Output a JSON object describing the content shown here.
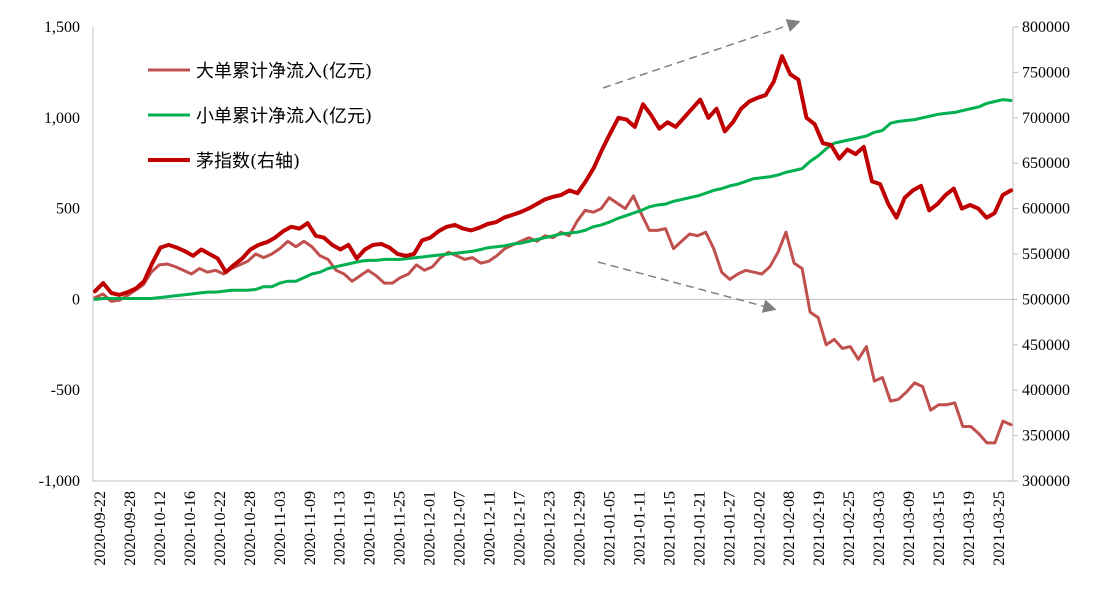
{
  "chart_data": {
    "type": "line",
    "title": "",
    "xlabel": "",
    "ylabel": "",
    "y_left": {
      "ticks": [
        "1,500",
        "1,000",
        "500",
        "0",
        "-500",
        "-1,000"
      ],
      "ylim": [
        -1000,
        1500
      ]
    },
    "y_right": {
      "ticks": [
        "800000",
        "750000",
        "700000",
        "650000",
        "600000",
        "550000",
        "500000",
        "450000",
        "400000",
        "350000",
        "300000"
      ],
      "ylim": [
        300000,
        800000
      ]
    },
    "x_tick_labels": [
      "2020-09-22",
      "2020-09-28",
      "2020-10-12",
      "2020-10-16",
      "2020-10-22",
      "2020-10-28",
      "2020-11-03",
      "2020-11-09",
      "2020-11-13",
      "2020-11-19",
      "2020-11-25",
      "2020-12-01",
      "2020-12-07",
      "2020-12-11",
      "2020-12-17",
      "2020-12-23",
      "2020-12-29",
      "2021-01-05",
      "2021-01-11",
      "2021-01-15",
      "2021-01-21",
      "2021-01-27",
      "2021-02-02",
      "2021-02-08",
      "2021-02-19",
      "2021-02-25",
      "2021-03-03",
      "2021-03-09",
      "2021-03-15",
      "2021-03-19",
      "2021-03-25"
    ],
    "grid": false,
    "legend_position": "top-left",
    "series": [
      {
        "name": "大单累计净流入(亿元)",
        "axis": "left",
        "color": "#c0504d",
        "values": [
          10,
          30,
          -10,
          -5,
          20,
          50,
          80,
          150,
          190,
          195,
          180,
          160,
          140,
          170,
          150,
          160,
          140,
          170,
          190,
          210,
          250,
          230,
          250,
          280,
          320,
          290,
          320,
          290,
          240,
          220,
          160,
          140,
          100,
          130,
          160,
          130,
          90,
          90,
          120,
          140,
          190,
          160,
          180,
          230,
          260,
          240,
          220,
          230,
          200,
          210,
          240,
          280,
          300,
          320,
          340,
          320,
          350,
          340,
          370,
          350,
          430,
          490,
          480,
          500,
          560,
          530,
          500,
          570,
          470,
          380,
          380,
          390,
          280,
          320,
          360,
          350,
          370,
          280,
          150,
          110,
          140,
          160,
          150,
          140,
          180,
          260,
          370,
          200,
          170,
          -70,
          -100,
          -250,
          -220,
          -270,
          -260,
          -330,
          -260,
          -450,
          -430,
          -560,
          -550,
          -510,
          -460,
          -480,
          -610,
          -580,
          -580,
          -570,
          -700,
          -700,
          -740,
          -790,
          -790,
          -670,
          -690
        ]
      },
      {
        "name": "小单累计净流入(亿元)",
        "axis": "left",
        "color": "#00b050",
        "values": [
          0,
          5,
          5,
          5,
          5,
          5,
          5,
          5,
          10,
          15,
          20,
          25,
          30,
          35,
          40,
          40,
          45,
          50,
          50,
          50,
          55,
          70,
          70,
          90,
          100,
          100,
          120,
          140,
          150,
          170,
          180,
          190,
          200,
          210,
          215,
          215,
          220,
          220,
          220,
          225,
          230,
          235,
          240,
          245,
          250,
          255,
          260,
          265,
          275,
          285,
          290,
          295,
          305,
          310,
          320,
          330,
          340,
          350,
          360,
          365,
          370,
          380,
          400,
          410,
          425,
          445,
          460,
          475,
          490,
          510,
          520,
          525,
          540,
          550,
          560,
          570,
          585,
          600,
          610,
          625,
          635,
          650,
          665,
          670,
          675,
          685,
          700,
          710,
          720,
          760,
          790,
          830,
          860,
          870,
          880,
          890,
          900,
          920,
          930,
          970,
          980,
          985,
          990,
          1000,
          1010,
          1020,
          1025,
          1030,
          1040,
          1050,
          1060,
          1080,
          1090,
          1100,
          1095
        ]
      },
      {
        "name": "茅指数(右轴)",
        "axis": "right",
        "color": "#c00000",
        "values": [
          509000,
          518000,
          507000,
          505000,
          508000,
          512000,
          520000,
          540000,
          557000,
          560000,
          557000,
          553000,
          548000,
          555000,
          550000,
          545000,
          530000,
          538000,
          545000,
          555000,
          560000,
          563000,
          568000,
          575000,
          580000,
          578000,
          584000,
          570000,
          568000,
          560000,
          555000,
          560000,
          545000,
          555000,
          560000,
          561000,
          557000,
          550000,
          548000,
          550000,
          565000,
          568000,
          575000,
          580000,
          582000,
          578000,
          576000,
          579000,
          583000,
          585000,
          590000,
          593000,
          596000,
          600000,
          605000,
          610000,
          613000,
          615000,
          620000,
          617000,
          630000,
          645000,
          665000,
          683000,
          700000,
          698000,
          690000,
          715000,
          703000,
          688000,
          695000,
          690000,
          700000,
          710000,
          720000,
          700000,
          710000,
          685000,
          695000,
          710000,
          718000,
          722000,
          725000,
          740000,
          768000,
          748000,
          742000,
          700000,
          693000,
          672000,
          670000,
          655000,
          665000,
          660000,
          668000,
          630000,
          627000,
          605000,
          590000,
          612000,
          620000,
          625000,
          598000,
          605000,
          615000,
          622000,
          600000,
          604000,
          600000,
          590000,
          595000,
          615000,
          620000
        ]
      }
    ],
    "annotations": [
      {
        "type": "dashed-arrow",
        "direction": "up-right",
        "color": "#808080"
      },
      {
        "type": "dashed-arrow",
        "direction": "down-right",
        "color": "#808080"
      }
    ]
  }
}
